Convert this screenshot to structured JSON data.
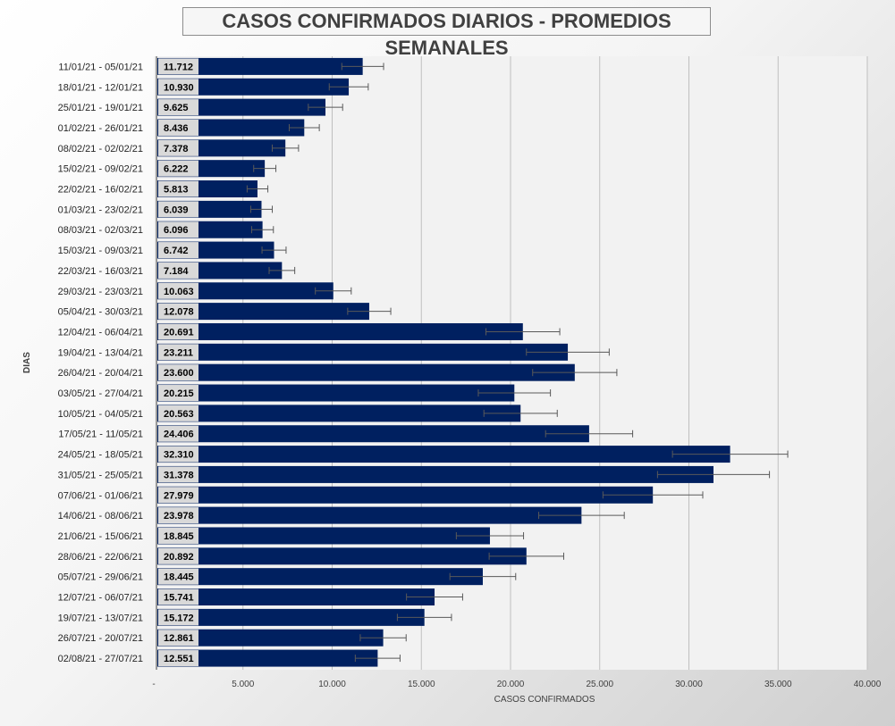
{
  "chart_data": {
    "type": "bar",
    "orientation": "horizontal",
    "title": "CASOS CONFIRMADOS DIARIOS - PROMEDIOS SEMANALES",
    "xlabel": "CASOS CONFIRMADOS",
    "ylabel": "DIAS",
    "xlim": [
      0,
      40000
    ],
    "x_ticks": [
      0,
      5000,
      10000,
      15000,
      20000,
      25000,
      30000,
      35000,
      40000
    ],
    "x_tick_labels": [
      "-",
      "5.000",
      "10.000",
      "15.000",
      "20.000",
      "25.000",
      "30.000",
      "35.000",
      "40.000"
    ],
    "grid": true,
    "bar_color": "#002060",
    "label_box_color": "#d9d9d9",
    "categories": [
      "11/01/21 - 05/01/21",
      "18/01/21 - 12/01/21",
      "25/01/21 - 19/01/21",
      "01/02/21 - 26/01/21",
      "08/02/21 - 02/02/21",
      "15/02/21 - 09/02/21",
      "22/02/21 - 16/02/21",
      "01/03/21 - 23/02/21",
      "08/03/21 - 02/03/21",
      "15/03/21 - 09/03/21",
      "22/03/21 - 16/03/21",
      "29/03/21 - 23/03/21",
      "05/04/21 - 30/03/21",
      "12/04/21 - 06/04/21",
      "19/04/21 - 13/04/21",
      "26/04/21 - 20/04/21",
      "03/05/21 - 27/04/21",
      "10/05/21 - 04/05/21",
      "17/05/21 - 11/05/21",
      "24/05/21 - 18/05/21",
      "31/05/21 - 25/05/21",
      "07/06/21 - 01/06/21",
      "14/06/21 - 08/06/21",
      "21/06/21 - 15/06/21",
      "28/06/21 - 22/06/21",
      "05/07/21 - 29/06/21",
      "12/07/21 - 06/07/21",
      "19/07/21 - 13/07/21",
      "26/07/21 - 20/07/21",
      "02/08/21 - 27/07/21"
    ],
    "values": [
      11712,
      10930,
      9625,
      8436,
      7378,
      6222,
      5813,
      6039,
      6096,
      6742,
      7184,
      10063,
      12078,
      20691,
      23211,
      23600,
      20215,
      20563,
      24406,
      32310,
      31378,
      27979,
      23978,
      18845,
      20892,
      18445,
      15741,
      15172,
      12861,
      12551
    ],
    "value_labels": [
      "11.712",
      "10.930",
      "9.625",
      "8.436",
      "7.378",
      "6.222",
      "5.813",
      "6.039",
      "6.096",
      "6.742",
      "7.184",
      "10.063",
      "12.078",
      "20.691",
      "23.211",
      "23.600",
      "20.215",
      "20.563",
      "24.406",
      "32.310",
      "31.378",
      "27.979",
      "23.978",
      "18.845",
      "20.892",
      "18.445",
      "15.741",
      "15.172",
      "12.861",
      "12.551"
    ],
    "error_bars": "±10%"
  }
}
